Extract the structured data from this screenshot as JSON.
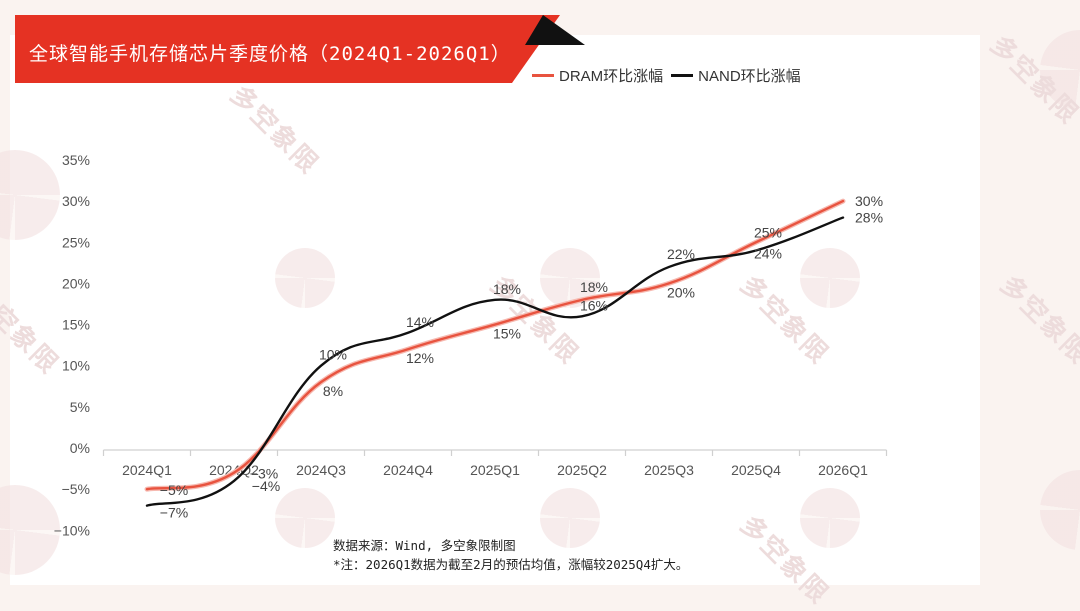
{
  "title": "全球智能手机存储芯片季度价格（2024Q1-2026Q1）",
  "colors": {
    "banner_red": "#e53223",
    "banner_black": "#111111",
    "dram": "#e8533f",
    "nand": "#111111",
    "background": "#faf3f0"
  },
  "legend": [
    {
      "label": "DRAM环比涨幅",
      "color": "#e8533f"
    },
    {
      "label": "NAND环比涨幅",
      "color": "#111111"
    }
  ],
  "footnote": {
    "source": "数据来源：Wind, 多空象限制图",
    "note": "*注：2026Q1数据为截至2月的预估均值，涨幅较2025Q4扩大。"
  },
  "watermark": "多空象限",
  "chart_data": {
    "type": "line",
    "title": "全球智能手机存储芯片季度价格（2024Q1-2026Q1）",
    "xlabel": "",
    "ylabel": "",
    "categories": [
      "2024Q1",
      "2024Q2",
      "2024Q3",
      "2024Q4",
      "2025Q1",
      "2025Q2",
      "2025Q3",
      "2025Q4",
      "2026Q1"
    ],
    "series": [
      {
        "name": "DRAM环比涨幅",
        "color": "#e8533f",
        "values": [
          -5,
          -3,
          8,
          12,
          15,
          18,
          20,
          25,
          30
        ],
        "labels": [
          "-5%",
          "-3%",
          "8%",
          "12%",
          "15%",
          "18%",
          "20%",
          "25%",
          "30%"
        ]
      },
      {
        "name": "NAND环比涨幅",
        "color": "#111111",
        "values": [
          -7,
          -4,
          10,
          14,
          18,
          16,
          22,
          24,
          28
        ],
        "labels": [
          "-7%",
          "-4%",
          "10%",
          "14%",
          "18%",
          "16%",
          "22%",
          "24%",
          "28%"
        ]
      }
    ],
    "yticks": [
      "35%",
      "30%",
      "25%",
      "20%",
      "15%",
      "10%",
      "5%",
      "0%",
      "-5%",
      "-10%"
    ],
    "ylim": [
      -10,
      35
    ],
    "grid": false,
    "smooth": true,
    "legend_position": "top-right",
    "unit": "%"
  }
}
